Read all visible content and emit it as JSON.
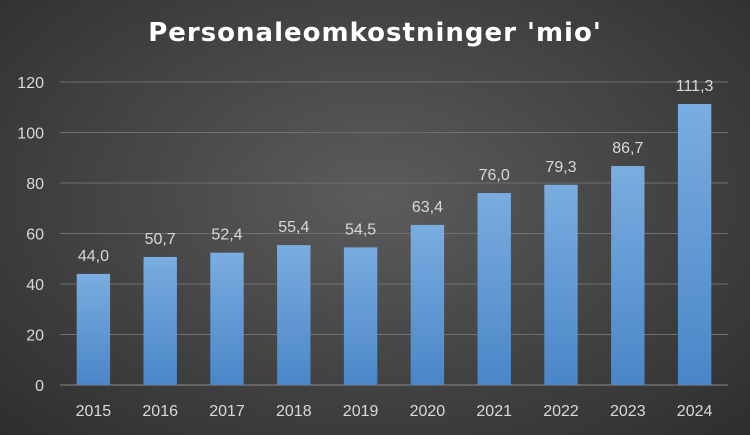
{
  "chart_data": {
    "type": "bar",
    "title": "Personaleomkostninger 'mio'",
    "categories": [
      "2015",
      "2016",
      "2017",
      "2018",
      "2019",
      "2020",
      "2021",
      "2022",
      "2023",
      "2024"
    ],
    "values": [
      44.0,
      50.7,
      52.4,
      55.4,
      54.5,
      63.4,
      76.0,
      79.3,
      86.7,
      111.3
    ],
    "value_labels": [
      "44,0",
      "50,7",
      "52,4",
      "55,4",
      "54,5",
      "63,4",
      "76,0",
      "79,3",
      "86,7",
      "111,3"
    ],
    "yticks": [
      "0",
      "20",
      "40",
      "60",
      "80",
      "100",
      "120"
    ],
    "ylim": [
      0,
      120
    ],
    "xlabel": "",
    "ylabel": "",
    "grid": true,
    "legend": false,
    "colors": {
      "bar_top": "#7aade0",
      "bar_bottom": "#4a86c8",
      "text": "#d9d9d9",
      "title": "#ffffff",
      "grid": "#707070"
    }
  }
}
